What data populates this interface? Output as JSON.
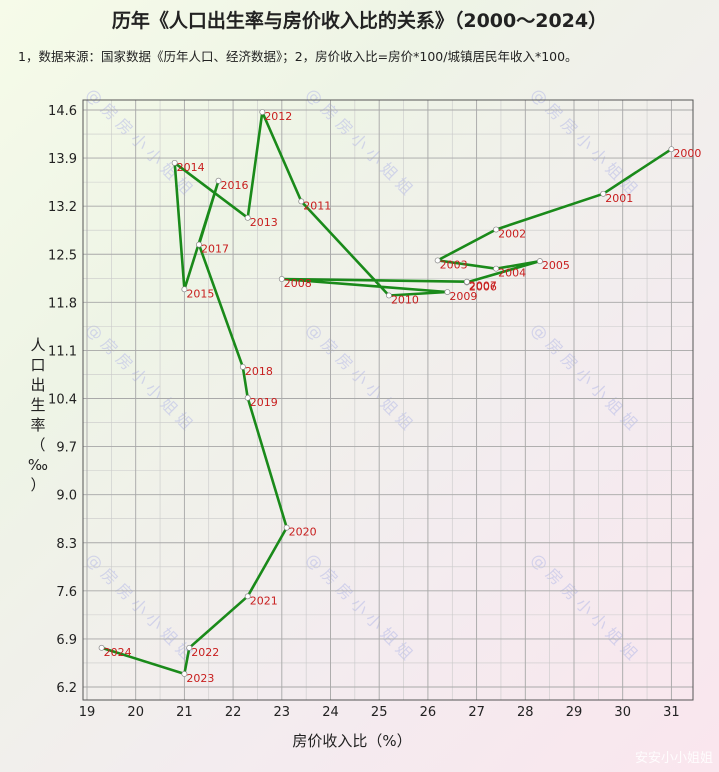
{
  "title": "历年《人口出生率与房价收入比的关系》（2000～2024）",
  "note": "1，数据来源：国家数据《历年人口、经济数据》；2，房价收入比=房价*100/城镇居民年收入*100。",
  "watermark": "安安小小姐姐",
  "chart_data": {
    "type": "line",
    "title": "历年《人口出生率与房价收入比的关系》（2000～2024）",
    "xlabel": "房价收入比（%）",
    "ylabel": "人口出生率（‰）",
    "xlim": [
      19,
      31.5
    ],
    "ylim": [
      6.2,
      14.6
    ],
    "xticks": [
      "19",
      "20",
      "21",
      "22",
      "23",
      "24",
      "25",
      "26",
      "27",
      "28",
      "29",
      "30",
      "31"
    ],
    "yticks": [
      "6.2",
      "6.9",
      "7.6",
      "8.3",
      "9.0",
      "9.7",
      "10.4",
      "11.1",
      "11.8",
      "12.5",
      "13.2",
      "13.9",
      "14.6"
    ],
    "grid": true,
    "line_color": "#1a8a1a",
    "label_color": "#c81e1e",
    "points": [
      {
        "year": "2000",
        "x": 31.0,
        "y": 14.03
      },
      {
        "year": "2001",
        "x": 29.6,
        "y": 13.38
      },
      {
        "year": "2002",
        "x": 27.4,
        "y": 12.86
      },
      {
        "year": "2003",
        "x": 26.2,
        "y": 12.41
      },
      {
        "year": "2004",
        "x": 27.4,
        "y": 12.29
      },
      {
        "year": "2005",
        "x": 28.3,
        "y": 12.4
      },
      {
        "year": "2006",
        "x": 26.8,
        "y": 12.09
      },
      {
        "year": "2007",
        "x": 26.8,
        "y": 12.1
      },
      {
        "year": "2008",
        "x": 23.0,
        "y": 12.14
      },
      {
        "year": "2009",
        "x": 26.4,
        "y": 11.95
      },
      {
        "year": "2010",
        "x": 25.2,
        "y": 11.9
      },
      {
        "year": "2011",
        "x": 23.4,
        "y": 13.27
      },
      {
        "year": "2012",
        "x": 22.6,
        "y": 14.57
      },
      {
        "year": "2013",
        "x": 22.3,
        "y": 13.03
      },
      {
        "year": "2014",
        "x": 20.8,
        "y": 13.83
      },
      {
        "year": "2015",
        "x": 21.0,
        "y": 11.99
      },
      {
        "year": "2016",
        "x": 21.7,
        "y": 13.57
      },
      {
        "year": "2017",
        "x": 21.3,
        "y": 12.64
      },
      {
        "year": "2018",
        "x": 22.2,
        "y": 10.86
      },
      {
        "year": "2019",
        "x": 22.3,
        "y": 10.41
      },
      {
        "year": "2020",
        "x": 23.1,
        "y": 8.52
      },
      {
        "year": "2021",
        "x": 22.3,
        "y": 7.52
      },
      {
        "year": "2022",
        "x": 21.1,
        "y": 6.77
      },
      {
        "year": "2023",
        "x": 21.0,
        "y": 6.39
      },
      {
        "year": "2024",
        "x": 19.3,
        "y": 6.77
      }
    ]
  }
}
